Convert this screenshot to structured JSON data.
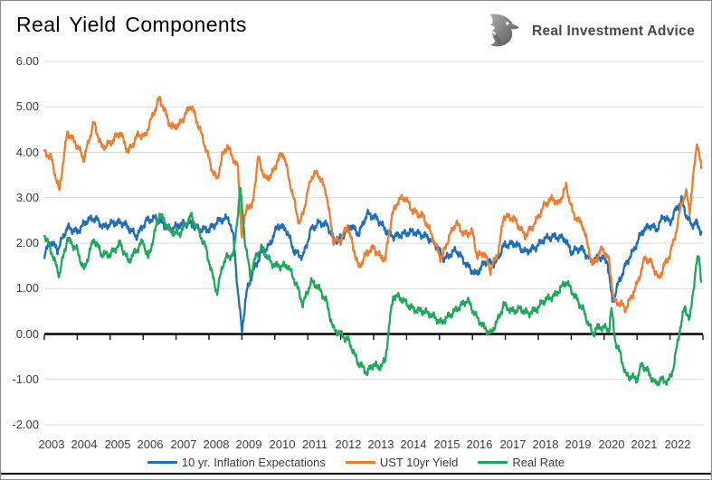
{
  "title": "Real Yield Components",
  "brand": {
    "name": "Real Investment Advice",
    "icon": "eagle-logo-icon"
  },
  "chart_data": {
    "type": "line",
    "title": "Real Yield Components",
    "grid": true,
    "legend_position": "bottom",
    "x_axis": {
      "range": [
        2003,
        2023
      ],
      "ticks": [
        {
          "label": "2003",
          "value": 2003
        },
        {
          "label": "2004",
          "value": 2004
        },
        {
          "label": "2005",
          "value": 2005
        },
        {
          "label": "2006",
          "value": 2006
        },
        {
          "label": "2007",
          "value": 2007
        },
        {
          "label": "2008",
          "value": 2008
        },
        {
          "label": "2009",
          "value": 2009
        },
        {
          "label": "2010",
          "value": 2010
        },
        {
          "label": "2011",
          "value": 2011
        },
        {
          "label": "2012",
          "value": 2012
        },
        {
          "label": "2013",
          "value": 2013
        },
        {
          "label": "2014",
          "value": 2014
        },
        {
          "label": "2015",
          "value": 2015
        },
        {
          "label": "2016",
          "value": 2016
        },
        {
          "label": "2017",
          "value": 2017
        },
        {
          "label": "2018",
          "value": 2018
        },
        {
          "label": "2019",
          "value": 2019
        },
        {
          "label": "2020",
          "value": 2020
        },
        {
          "label": "2021",
          "value": 2021
        },
        {
          "label": "2022",
          "value": 2022
        }
      ]
    },
    "y_axis": {
      "range": [
        -2,
        6
      ],
      "ticks": [
        {
          "label": "6.00",
          "value": 6
        },
        {
          "label": "5.00",
          "value": 5
        },
        {
          "label": "4.00",
          "value": 4
        },
        {
          "label": "3.00",
          "value": 3
        },
        {
          "label": "2.00",
          "value": 2
        },
        {
          "label": "1.00",
          "value": 1
        },
        {
          "label": "0.00",
          "value": 0
        },
        {
          "label": "-1.00",
          "value": -1
        },
        {
          "label": "-2.00",
          "value": -2
        }
      ]
    },
    "series": [
      {
        "name": "10 yr. Inflation Expectations",
        "color": "#1F6FB8",
        "points": [
          [
            2003.0,
            1.75
          ],
          [
            2003.2,
            2.05
          ],
          [
            2003.4,
            1.85
          ],
          [
            2003.7,
            2.35
          ],
          [
            2004.0,
            2.25
          ],
          [
            2004.3,
            2.5
          ],
          [
            2004.55,
            2.55
          ],
          [
            2004.8,
            2.35
          ],
          [
            2005.1,
            2.45
          ],
          [
            2005.4,
            2.45
          ],
          [
            2005.8,
            2.15
          ],
          [
            2006.1,
            2.5
          ],
          [
            2006.4,
            2.55
          ],
          [
            2006.8,
            2.3
          ],
          [
            2007.1,
            2.4
          ],
          [
            2007.4,
            2.45
          ],
          [
            2007.7,
            2.3
          ],
          [
            2008.0,
            2.3
          ],
          [
            2008.3,
            2.5
          ],
          [
            2008.6,
            2.55
          ],
          [
            2008.75,
            2.1
          ],
          [
            2008.88,
            0.9
          ],
          [
            2009.0,
            0.08
          ],
          [
            2009.15,
            0.95
          ],
          [
            2009.35,
            1.4
          ],
          [
            2009.6,
            1.8
          ],
          [
            2009.8,
            1.9
          ],
          [
            2010.1,
            2.4
          ],
          [
            2010.35,
            2.3
          ],
          [
            2010.6,
            1.8
          ],
          [
            2010.85,
            1.7
          ],
          [
            2011.1,
            2.3
          ],
          [
            2011.35,
            2.45
          ],
          [
            2011.6,
            2.4
          ],
          [
            2011.8,
            2.05
          ],
          [
            2012.0,
            2.1
          ],
          [
            2012.3,
            2.4
          ],
          [
            2012.55,
            2.2
          ],
          [
            2012.8,
            2.65
          ],
          [
            2013.1,
            2.55
          ],
          [
            2013.4,
            2.25
          ],
          [
            2013.6,
            2.15
          ],
          [
            2013.9,
            2.2
          ],
          [
            2014.2,
            2.25
          ],
          [
            2014.6,
            2.15
          ],
          [
            2014.9,
            1.95
          ],
          [
            2015.15,
            1.65
          ],
          [
            2015.5,
            1.85
          ],
          [
            2015.8,
            1.55
          ],
          [
            2016.1,
            1.3
          ],
          [
            2016.4,
            1.6
          ],
          [
            2016.7,
            1.55
          ],
          [
            2016.95,
            1.95
          ],
          [
            2017.3,
            2.0
          ],
          [
            2017.6,
            1.8
          ],
          [
            2017.9,
            1.9
          ],
          [
            2018.2,
            2.1
          ],
          [
            2018.5,
            2.15
          ],
          [
            2018.8,
            2.1
          ],
          [
            2019.0,
            1.8
          ],
          [
            2019.3,
            1.9
          ],
          [
            2019.6,
            1.6
          ],
          [
            2019.9,
            1.7
          ],
          [
            2020.1,
            1.6
          ],
          [
            2020.25,
            0.7
          ],
          [
            2020.45,
            1.15
          ],
          [
            2020.7,
            1.6
          ],
          [
            2020.9,
            1.85
          ],
          [
            2021.15,
            2.25
          ],
          [
            2021.4,
            2.4
          ],
          [
            2021.6,
            2.3
          ],
          [
            2021.8,
            2.6
          ],
          [
            2022.0,
            2.45
          ],
          [
            2022.15,
            2.7
          ],
          [
            2022.35,
            2.95
          ],
          [
            2022.5,
            2.6
          ],
          [
            2022.65,
            2.4
          ],
          [
            2022.8,
            2.45
          ],
          [
            2022.95,
            2.25
          ]
        ]
      },
      {
        "name": "UST 10yr Yield",
        "color": "#ED7D31",
        "points": [
          [
            2003.0,
            4.0
          ],
          [
            2003.2,
            3.9
          ],
          [
            2003.45,
            3.15
          ],
          [
            2003.7,
            4.45
          ],
          [
            2004.0,
            4.15
          ],
          [
            2004.2,
            3.85
          ],
          [
            2004.5,
            4.65
          ],
          [
            2004.75,
            4.1
          ],
          [
            2005.0,
            4.2
          ],
          [
            2005.3,
            4.45
          ],
          [
            2005.55,
            4.0
          ],
          [
            2005.85,
            4.4
          ],
          [
            2006.05,
            4.35
          ],
          [
            2006.5,
            5.2
          ],
          [
            2006.85,
            4.55
          ],
          [
            2007.1,
            4.6
          ],
          [
            2007.45,
            5.05
          ],
          [
            2007.7,
            4.55
          ],
          [
            2007.9,
            4.1
          ],
          [
            2008.1,
            3.6
          ],
          [
            2008.25,
            3.4
          ],
          [
            2008.4,
            3.9
          ],
          [
            2008.55,
            4.15
          ],
          [
            2008.75,
            3.85
          ],
          [
            2008.88,
            3.65
          ],
          [
            2009.0,
            2.1
          ],
          [
            2009.15,
            2.85
          ],
          [
            2009.3,
            2.75
          ],
          [
            2009.5,
            3.9
          ],
          [
            2009.7,
            3.4
          ],
          [
            2009.9,
            3.5
          ],
          [
            2010.1,
            3.85
          ],
          [
            2010.25,
            4.0
          ],
          [
            2010.5,
            3.2
          ],
          [
            2010.75,
            2.4
          ],
          [
            2010.9,
            2.8
          ],
          [
            2011.1,
            3.45
          ],
          [
            2011.3,
            3.55
          ],
          [
            2011.55,
            3.15
          ],
          [
            2011.78,
            2.05
          ],
          [
            2012.0,
            2.05
          ],
          [
            2012.2,
            2.4
          ],
          [
            2012.55,
            1.45
          ],
          [
            2012.8,
            1.8
          ],
          [
            2013.0,
            1.9
          ],
          [
            2013.2,
            1.7
          ],
          [
            2013.35,
            1.65
          ],
          [
            2013.55,
            2.6
          ],
          [
            2013.75,
            2.95
          ],
          [
            2013.95,
            3.0
          ],
          [
            2014.2,
            2.7
          ],
          [
            2014.5,
            2.6
          ],
          [
            2014.75,
            2.2
          ],
          [
            2015.05,
            1.65
          ],
          [
            2015.3,
            2.15
          ],
          [
            2015.5,
            2.45
          ],
          [
            2015.75,
            2.2
          ],
          [
            2016.0,
            2.25
          ],
          [
            2016.15,
            1.7
          ],
          [
            2016.35,
            1.8
          ],
          [
            2016.55,
            1.4
          ],
          [
            2016.8,
            1.85
          ],
          [
            2016.95,
            2.6
          ],
          [
            2017.25,
            2.55
          ],
          [
            2017.6,
            2.15
          ],
          [
            2017.9,
            2.45
          ],
          [
            2018.2,
            2.85
          ],
          [
            2018.45,
            3.0
          ],
          [
            2018.6,
            2.85
          ],
          [
            2018.85,
            3.25
          ],
          [
            2019.05,
            2.65
          ],
          [
            2019.35,
            2.4
          ],
          [
            2019.65,
            1.5
          ],
          [
            2019.95,
            1.9
          ],
          [
            2020.15,
            1.6
          ],
          [
            2020.3,
            0.7
          ],
          [
            2020.5,
            0.68
          ],
          [
            2020.65,
            0.55
          ],
          [
            2020.85,
            0.85
          ],
          [
            2021.0,
            1.1
          ],
          [
            2021.25,
            1.7
          ],
          [
            2021.45,
            1.55
          ],
          [
            2021.65,
            1.2
          ],
          [
            2021.85,
            1.55
          ],
          [
            2022.0,
            1.75
          ],
          [
            2022.2,
            2.3
          ],
          [
            2022.35,
            2.9
          ],
          [
            2022.5,
            3.1
          ],
          [
            2022.6,
            2.7
          ],
          [
            2022.82,
            4.25
          ],
          [
            2022.95,
            3.65
          ]
        ]
      },
      {
        "name": "Real Rate",
        "color": "#1FA75C",
        "points": [
          [
            2003.0,
            2.2
          ],
          [
            2003.2,
            1.85
          ],
          [
            2003.45,
            1.3
          ],
          [
            2003.7,
            2.1
          ],
          [
            2004.0,
            1.85
          ],
          [
            2004.2,
            1.4
          ],
          [
            2004.5,
            2.1
          ],
          [
            2004.75,
            1.75
          ],
          [
            2005.0,
            1.75
          ],
          [
            2005.3,
            2.0
          ],
          [
            2005.55,
            1.6
          ],
          [
            2005.85,
            1.9
          ],
          [
            2006.0,
            2.05
          ],
          [
            2006.15,
            1.65
          ],
          [
            2006.5,
            2.65
          ],
          [
            2006.85,
            2.25
          ],
          [
            2007.1,
            2.2
          ],
          [
            2007.45,
            2.6
          ],
          [
            2007.7,
            2.25
          ],
          [
            2007.9,
            1.9
          ],
          [
            2008.1,
            1.3
          ],
          [
            2008.25,
            0.9
          ],
          [
            2008.4,
            1.5
          ],
          [
            2008.55,
            1.7
          ],
          [
            2008.75,
            1.75
          ],
          [
            2008.95,
            3.2
          ],
          [
            2009.1,
            2.0
          ],
          [
            2009.25,
            1.3
          ],
          [
            2009.45,
            1.75
          ],
          [
            2009.6,
            1.9
          ],
          [
            2009.9,
            1.55
          ],
          [
            2010.1,
            1.5
          ],
          [
            2010.4,
            1.5
          ],
          [
            2010.65,
            1.1
          ],
          [
            2010.85,
            0.65
          ],
          [
            2011.1,
            1.15
          ],
          [
            2011.3,
            1.05
          ],
          [
            2011.55,
            0.75
          ],
          [
            2011.78,
            0.1
          ],
          [
            2012.0,
            0.0
          ],
          [
            2012.25,
            -0.15
          ],
          [
            2012.5,
            -0.6
          ],
          [
            2012.8,
            -0.85
          ],
          [
            2013.0,
            -0.65
          ],
          [
            2013.15,
            -0.75
          ],
          [
            2013.35,
            -0.6
          ],
          [
            2013.5,
            0.35
          ],
          [
            2013.6,
            0.85
          ],
          [
            2013.8,
            0.8
          ],
          [
            2013.95,
            0.7
          ],
          [
            2014.2,
            0.55
          ],
          [
            2014.5,
            0.5
          ],
          [
            2014.8,
            0.4
          ],
          [
            2015.05,
            0.25
          ],
          [
            2015.3,
            0.4
          ],
          [
            2015.6,
            0.6
          ],
          [
            2015.85,
            0.75
          ],
          [
            2016.1,
            0.4
          ],
          [
            2016.3,
            0.2
          ],
          [
            2016.55,
            0.0
          ],
          [
            2016.8,
            0.35
          ],
          [
            2016.95,
            0.65
          ],
          [
            2017.2,
            0.5
          ],
          [
            2017.45,
            0.55
          ],
          [
            2017.7,
            0.45
          ],
          [
            2017.95,
            0.55
          ],
          [
            2018.2,
            0.75
          ],
          [
            2018.5,
            0.85
          ],
          [
            2018.85,
            1.15
          ],
          [
            2019.1,
            0.85
          ],
          [
            2019.35,
            0.55
          ],
          [
            2019.65,
            0.0
          ],
          [
            2019.8,
            0.15
          ],
          [
            2019.95,
            0.15
          ],
          [
            2020.15,
            0.1
          ],
          [
            2020.22,
            0.55
          ],
          [
            2020.35,
            -0.2
          ],
          [
            2020.5,
            -0.45
          ],
          [
            2020.65,
            -0.9
          ],
          [
            2020.85,
            -0.95
          ],
          [
            2021.0,
            -1.0
          ],
          [
            2021.15,
            -0.65
          ],
          [
            2021.35,
            -0.85
          ],
          [
            2021.55,
            -1.1
          ],
          [
            2021.75,
            -1.0
          ],
          [
            2021.95,
            -1.05
          ],
          [
            2022.1,
            -0.75
          ],
          [
            2022.3,
            0.1
          ],
          [
            2022.45,
            0.6
          ],
          [
            2022.6,
            0.3
          ],
          [
            2022.8,
            1.55
          ],
          [
            2022.88,
            1.7
          ],
          [
            2022.95,
            1.15
          ]
        ]
      }
    ]
  }
}
